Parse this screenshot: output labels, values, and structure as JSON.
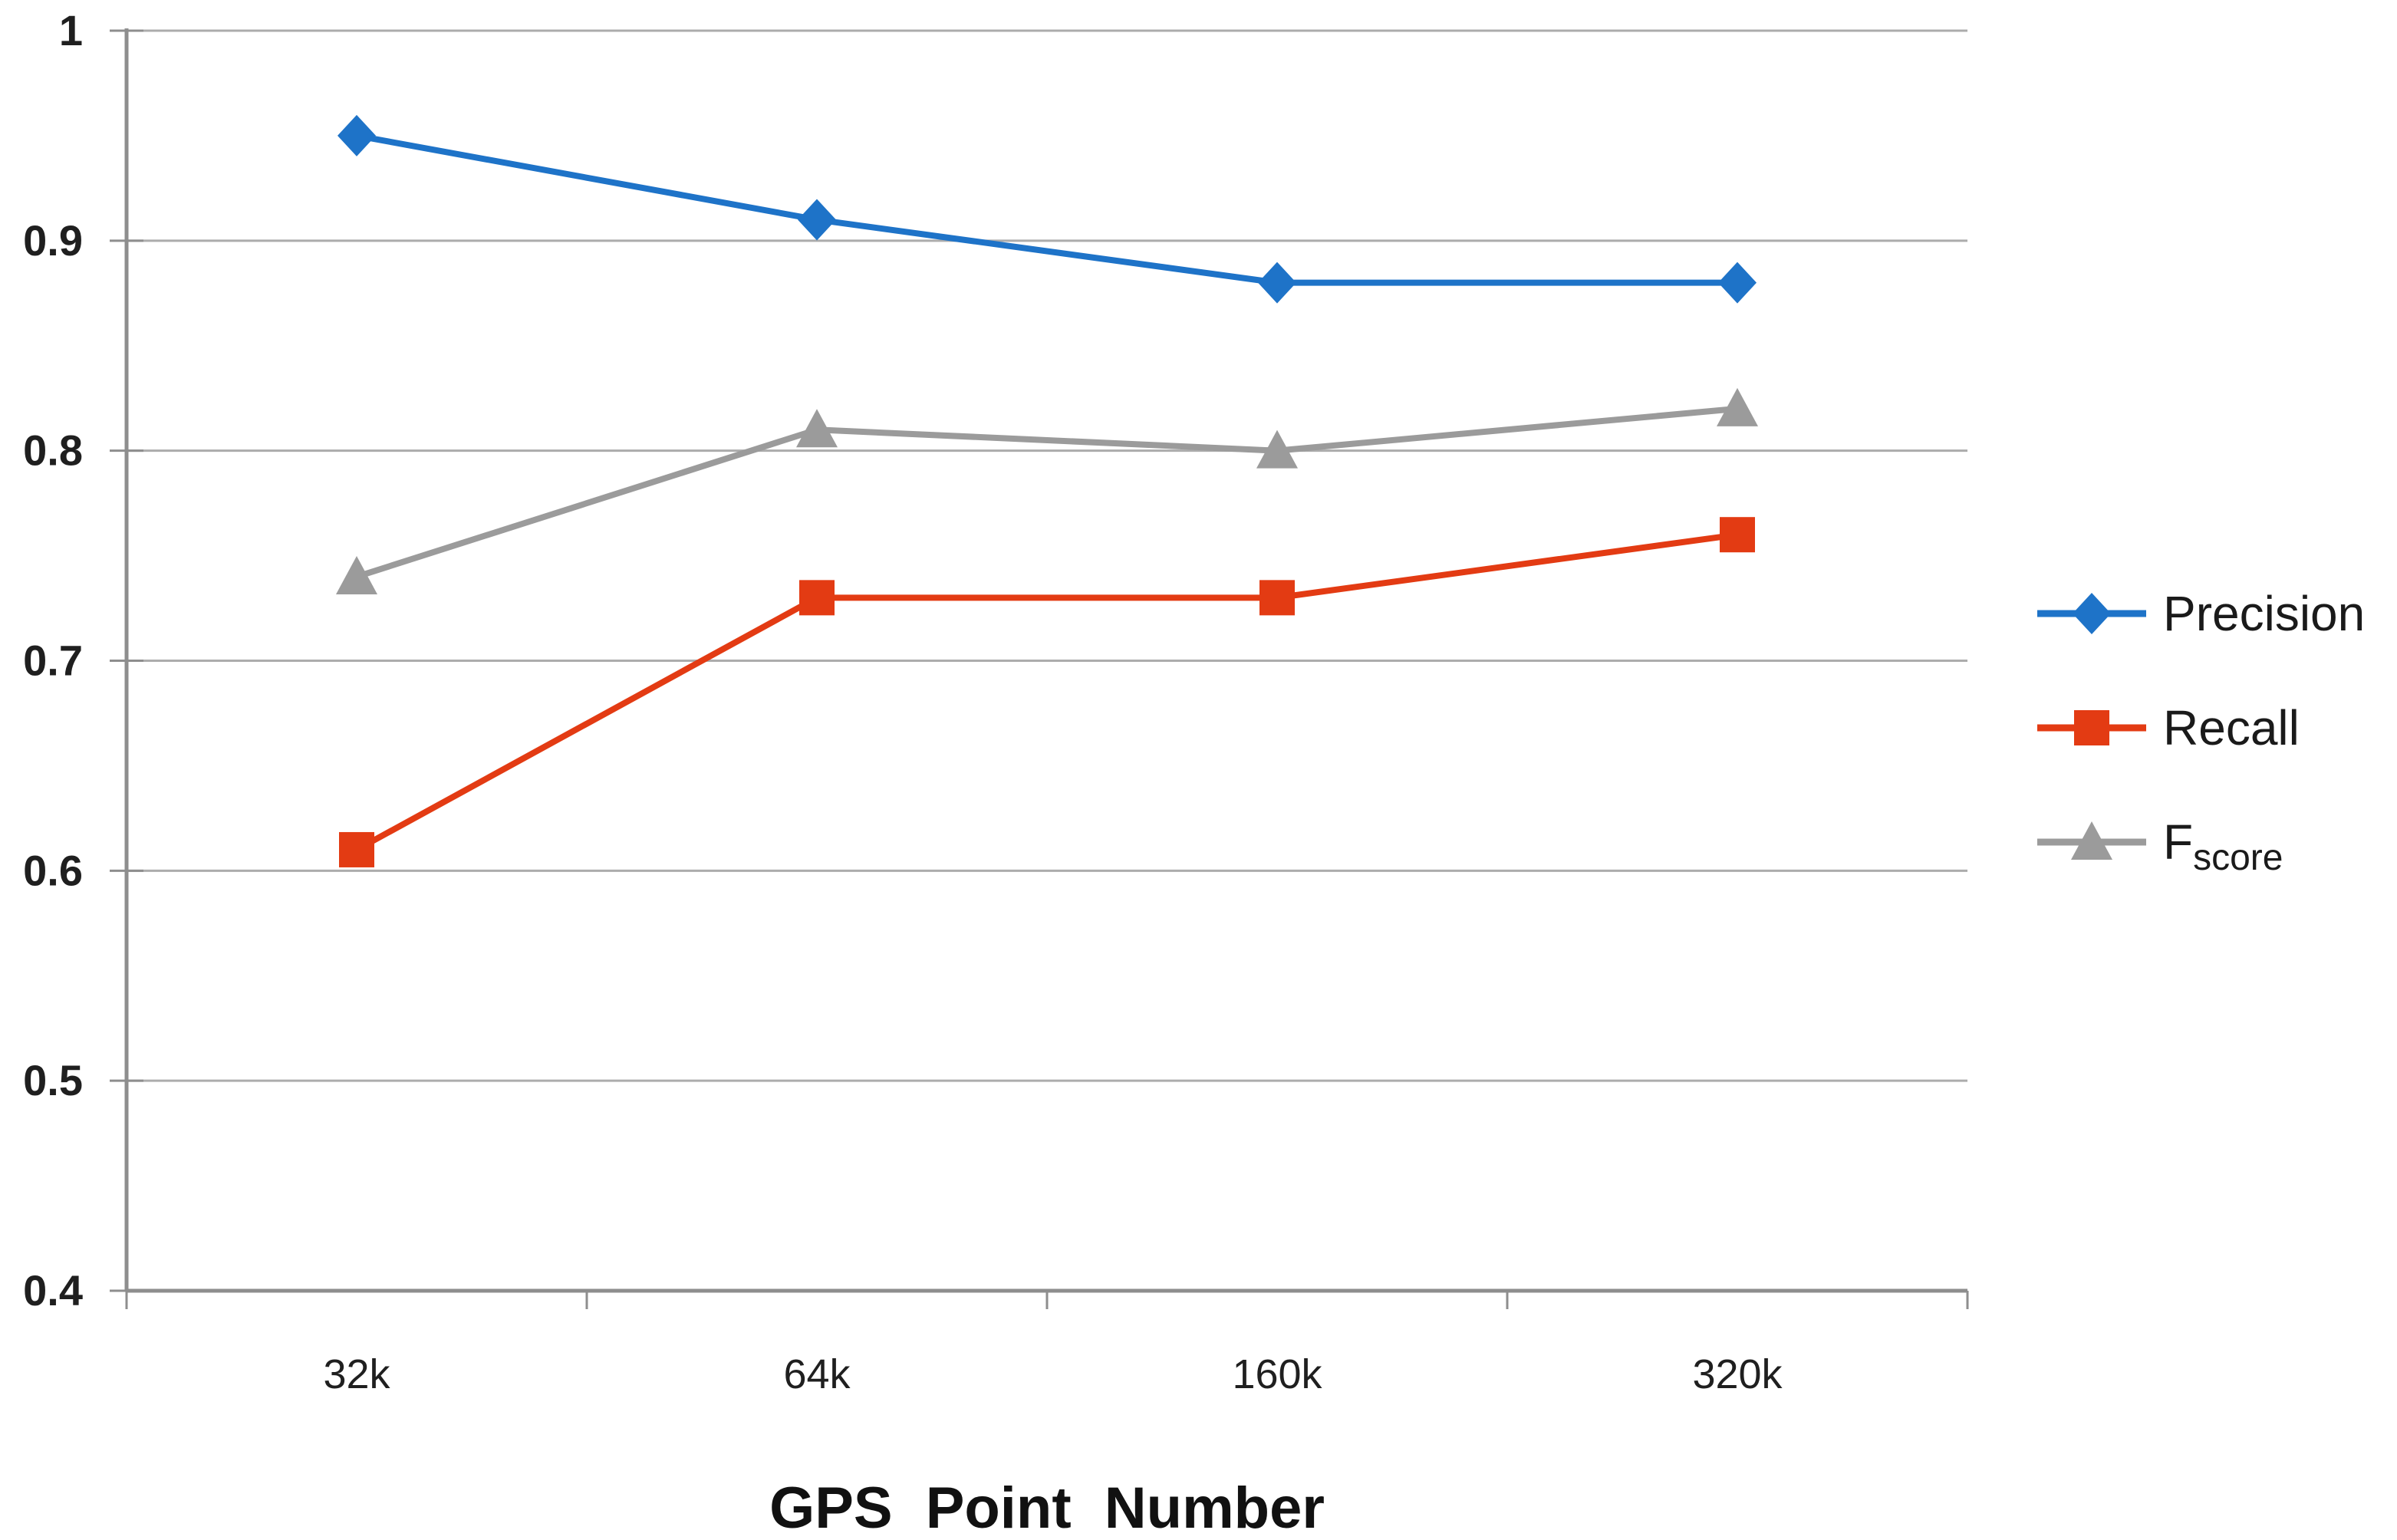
{
  "chart_data": {
    "type": "line",
    "title": "",
    "xlabel": "GPS Point Number",
    "ylabel": "",
    "categories": [
      "32k",
      "64k",
      "160k",
      "320k"
    ],
    "series": [
      {
        "name": "Precision",
        "values": [
          0.95,
          0.91,
          0.88,
          0.88
        ],
        "color": "#1E73C8",
        "marker": "diamond",
        "legend": {
          "main": "Precision",
          "sub": ""
        }
      },
      {
        "name": "Recall",
        "values": [
          0.61,
          0.73,
          0.73,
          0.76
        ],
        "color": "#E33B13",
        "marker": "square",
        "legend": {
          "main": "Recall",
          "sub": ""
        }
      },
      {
        "name": "Fscore",
        "values": [
          0.74,
          0.81,
          0.8,
          0.82
        ],
        "color": "#9B9B9B",
        "marker": "triangle",
        "legend": {
          "main": "F",
          "sub": "score"
        }
      }
    ],
    "ylim": [
      0.4,
      1.0
    ],
    "yticks": [
      {
        "value": 1.0,
        "label": "1"
      },
      {
        "value": 0.9,
        "label": "0.9"
      },
      {
        "value": 0.8,
        "label": "0.8"
      },
      {
        "value": 0.7,
        "label": "0.7"
      },
      {
        "value": 0.6,
        "label": "0.6"
      },
      {
        "value": 0.5,
        "label": "0.5"
      },
      {
        "value": 0.4,
        "label": "0.4"
      }
    ],
    "grid": true,
    "legend_position": "right"
  },
  "style": {
    "background": "#FFFFFF",
    "grid_color": "#ACACAC",
    "axis_color": "#8E8E8E",
    "text_color": "#1F1F1F"
  }
}
